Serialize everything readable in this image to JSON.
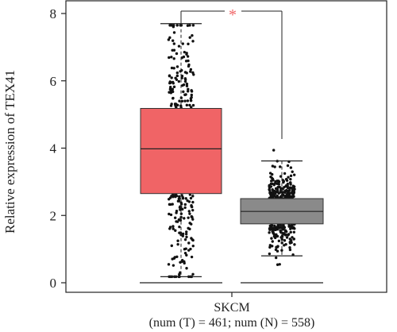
{
  "chart_data": {
    "type": "box",
    "ylabel": "Relative expression of TEX41",
    "ylim": [
      0,
      8.3
    ],
    "yticks": [
      0,
      2,
      4,
      6,
      8
    ],
    "categories": [
      "SKCM"
    ],
    "xlabel_line1": "SKCM",
    "xlabel_line2": "(num (T) = 461; num (N) = 558)",
    "significance": "*",
    "groups": [
      {
        "label": "T",
        "n": 461,
        "color": "#f06466",
        "min": 0.18,
        "q1": 2.65,
        "median": 3.98,
        "q3": 5.18,
        "max": 7.7,
        "point_min": 0.18,
        "point_max": 7.65
      },
      {
        "label": "N",
        "n": 558,
        "color": "#8a8a8a",
        "min": 0.8,
        "q1": 1.75,
        "median": 2.12,
        "q3": 2.5,
        "max": 3.62,
        "point_min": 0.15,
        "point_max": 4.15
      }
    ],
    "colors": {
      "tumor": "#f06466",
      "normal": "#8a8a8a",
      "significance": "#f06466",
      "points": "#111111"
    }
  }
}
